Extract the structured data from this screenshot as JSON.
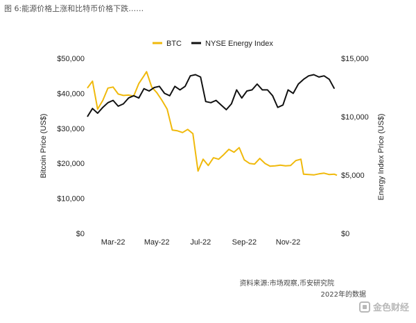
{
  "caption": "图 6:能源价格上涨和比特币价格下跌……",
  "source": "资料来源:市场观察,币安研究院",
  "note": "2022年的数据",
  "watermark": "金色财经",
  "chart_data": {
    "type": "line",
    "xlabel": "",
    "ylabel_left": "Bitcoin Price (US$)",
    "ylabel_right": "Energy Index Price (US$)",
    "ylim_left": [
      0,
      50000
    ],
    "ylim_right": [
      0,
      15000
    ],
    "yticks_left": [
      "$0",
      "$10,000",
      "$20,000",
      "$30,000",
      "$40,000",
      "$50,000"
    ],
    "yticks_right": [
      "$0",
      "$5,000",
      "$10,000",
      "$15,000"
    ],
    "xticks": [
      {
        "label": "Mar-22",
        "x": 10
      },
      {
        "label": "May-22",
        "x": 27
      },
      {
        "label": "Jul-22",
        "x": 44
      },
      {
        "label": "Sep-22",
        "x": 61
      },
      {
        "label": "Nov-22",
        "x": 78
      }
    ],
    "x_range": [
      0,
      97
    ],
    "legend_position": "top",
    "grid": false,
    "series": [
      {
        "name": "BTC",
        "color": "#f0b90b",
        "axis": "left",
        "points": [
          [
            0,
            41500
          ],
          [
            2,
            43500
          ],
          [
            4,
            35500
          ],
          [
            6,
            38000
          ],
          [
            8,
            41500
          ],
          [
            10,
            41800
          ],
          [
            12,
            39800
          ],
          [
            14,
            39400
          ],
          [
            16,
            39500
          ],
          [
            18,
            39200
          ],
          [
            20,
            42800
          ],
          [
            22,
            45000
          ],
          [
            23,
            46200
          ],
          [
            25,
            41800
          ],
          [
            27,
            40200
          ],
          [
            29,
            38000
          ],
          [
            31,
            35500
          ],
          [
            33,
            29500
          ],
          [
            35,
            29300
          ],
          [
            37,
            28800
          ],
          [
            39,
            29700
          ],
          [
            41,
            28500
          ],
          [
            43,
            17800
          ],
          [
            45,
            21200
          ],
          [
            47,
            19400
          ],
          [
            49,
            21600
          ],
          [
            51,
            21200
          ],
          [
            53,
            22500
          ],
          [
            55,
            24000
          ],
          [
            57,
            23200
          ],
          [
            59,
            24500
          ],
          [
            61,
            21000
          ],
          [
            63,
            20000
          ],
          [
            65,
            19800
          ],
          [
            67,
            21400
          ],
          [
            69,
            20000
          ],
          [
            71,
            19200
          ],
          [
            73,
            19300
          ],
          [
            75,
            19500
          ],
          [
            77,
            19300
          ],
          [
            79,
            19400
          ],
          [
            81,
            20800
          ],
          [
            83,
            21200
          ],
          [
            84,
            16900
          ],
          [
            86,
            16800
          ],
          [
            88,
            16700
          ],
          [
            90,
            17000
          ],
          [
            92,
            17200
          ],
          [
            94,
            16800
          ],
          [
            96,
            16900
          ],
          [
            97,
            16600
          ]
        ]
      },
      {
        "name": "NYSE Energy Index",
        "color": "#111111",
        "axis": "right",
        "points": [
          [
            0,
            10000
          ],
          [
            2,
            10700
          ],
          [
            4,
            10300
          ],
          [
            6,
            10800
          ],
          [
            8,
            11200
          ],
          [
            10,
            11400
          ],
          [
            12,
            10900
          ],
          [
            14,
            11100
          ],
          [
            16,
            11600
          ],
          [
            18,
            11800
          ],
          [
            20,
            11600
          ],
          [
            22,
            12400
          ],
          [
            24,
            12200
          ],
          [
            26,
            12500
          ],
          [
            28,
            12600
          ],
          [
            30,
            12000
          ],
          [
            32,
            11800
          ],
          [
            34,
            12600
          ],
          [
            36,
            12300
          ],
          [
            38,
            12600
          ],
          [
            40,
            13500
          ],
          [
            42,
            13600
          ],
          [
            44,
            13400
          ],
          [
            46,
            11300
          ],
          [
            48,
            11200
          ],
          [
            50,
            11400
          ],
          [
            52,
            11000
          ],
          [
            54,
            10600
          ],
          [
            56,
            11100
          ],
          [
            58,
            12300
          ],
          [
            60,
            11600
          ],
          [
            62,
            12200
          ],
          [
            64,
            12300
          ],
          [
            66,
            12800
          ],
          [
            68,
            12300
          ],
          [
            70,
            12300
          ],
          [
            72,
            11800
          ],
          [
            74,
            10800
          ],
          [
            76,
            11000
          ],
          [
            78,
            12300
          ],
          [
            80,
            12000
          ],
          [
            82,
            12800
          ],
          [
            84,
            13200
          ],
          [
            86,
            13500
          ],
          [
            88,
            13600
          ],
          [
            90,
            13400
          ],
          [
            92,
            13500
          ],
          [
            94,
            13200
          ],
          [
            96,
            12400
          ],
          [
            98,
            12500
          ],
          [
            100,
            13000
          ],
          [
            102,
            13000
          ]
        ]
      }
    ]
  }
}
